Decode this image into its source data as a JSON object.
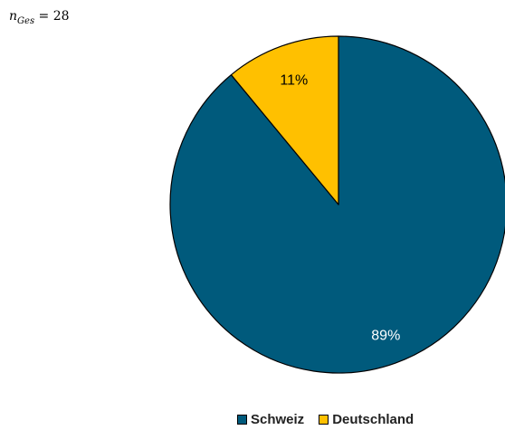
{
  "sample_size": {
    "symbol": "n",
    "subscript": "Ges",
    "operator": " = ",
    "value": "28"
  },
  "chart_data": {
    "type": "pie",
    "slices": [
      {
        "label": "Schweiz",
        "value": 89,
        "value_label": "89%",
        "color": "#005A7C",
        "label_color": "#ffffff"
      },
      {
        "label": "Deutschland",
        "value": 11,
        "value_label": "11%",
        "color": "#FFC000",
        "label_color": "#000000"
      }
    ],
    "start_angle_deg": 0,
    "direction": "clockwise",
    "legend_position": "bottom",
    "edge_color": "#000000"
  }
}
